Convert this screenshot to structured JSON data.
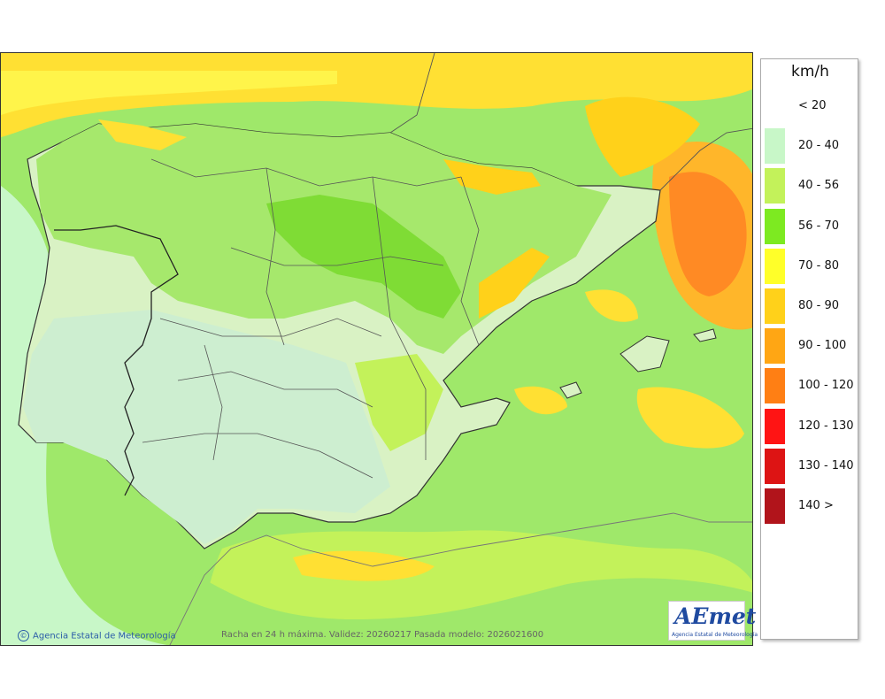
{
  "legend": {
    "title": "km/h",
    "items": [
      {
        "label": "< 20",
        "color": "#ffffff"
      },
      {
        "label": "20 - 40",
        "color": "#c8f7c8"
      },
      {
        "label": "40 - 56",
        "color": "#c3f25a"
      },
      {
        "label": "56 - 70",
        "color": "#7dea21"
      },
      {
        "label": "70 - 80",
        "color": "#ffff29"
      },
      {
        "label": "80 - 90",
        "color": "#ffd11a"
      },
      {
        "label": "90 - 100",
        "color": "#ffa614"
      },
      {
        "label": "100 - 120",
        "color": "#ff7f14"
      },
      {
        "label": "120 - 130",
        "color": "#ff1414"
      },
      {
        "label": "130 - 140",
        "color": "#dd1414"
      },
      {
        "label": "140 >",
        "color": "#b1141b"
      }
    ]
  },
  "credit": {
    "text": "Agencia Estatal de Meteorología",
    "symbol": "©"
  },
  "footer": {
    "text": "Racha en 24 h máxima. Validez: 20260217 Pasada modelo: 2026021600"
  },
  "logo": {
    "word": "AEmet",
    "subtitle": "Agencia Estatal de Meteorología"
  }
}
